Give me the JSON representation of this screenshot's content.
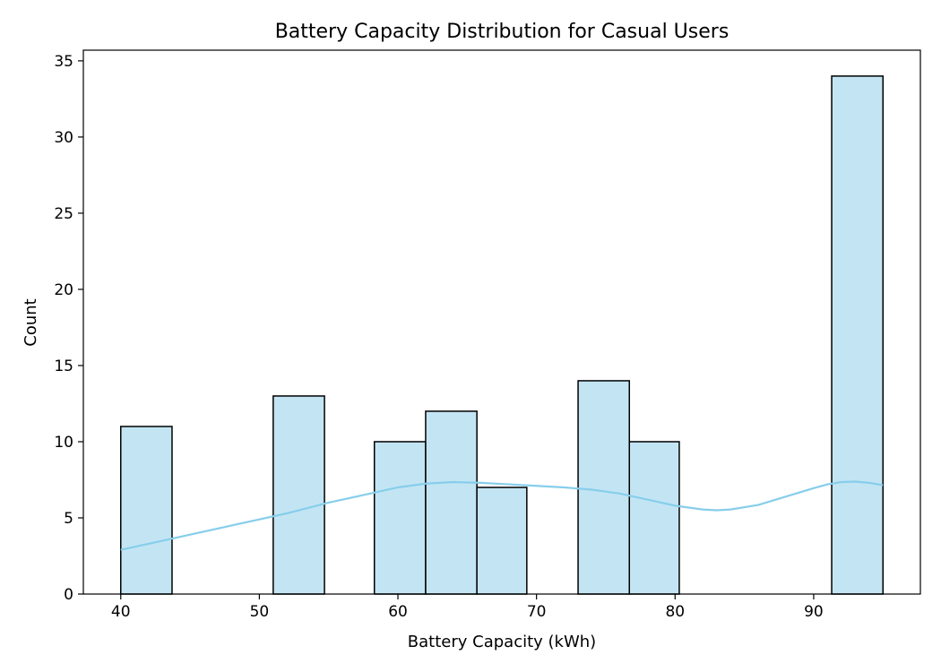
{
  "chart_data": {
    "type": "bar",
    "title": "Battery Capacity Distribution for Casual Users",
    "xlabel": "Battery Capacity (kWh)",
    "ylabel": "Count",
    "xlim": [
      37.3,
      97.7
    ],
    "ylim": [
      0,
      35.7
    ],
    "xticks": [
      40,
      50,
      60,
      70,
      80,
      90
    ],
    "yticks": [
      0,
      5,
      10,
      15,
      20,
      25,
      30,
      35
    ],
    "bins": [
      {
        "x0": 40.0,
        "x1": 43.7,
        "count": 11
      },
      {
        "x0": 43.7,
        "x1": 47.3,
        "count": 0
      },
      {
        "x0": 47.3,
        "x1": 51.0,
        "count": 0
      },
      {
        "x0": 51.0,
        "x1": 54.7,
        "count": 13
      },
      {
        "x0": 54.7,
        "x1": 58.3,
        "count": 0
      },
      {
        "x0": 58.3,
        "x1": 62.0,
        "count": 10
      },
      {
        "x0": 62.0,
        "x1": 65.7,
        "count": 12
      },
      {
        "x0": 65.7,
        "x1": 69.3,
        "count": 7
      },
      {
        "x0": 69.3,
        "x1": 73.0,
        "count": 0
      },
      {
        "x0": 73.0,
        "x1": 76.7,
        "count": 14
      },
      {
        "x0": 76.7,
        "x1": 80.3,
        "count": 10
      },
      {
        "x0": 80.3,
        "x1": 84.0,
        "count": 0
      },
      {
        "x0": 84.0,
        "x1": 87.7,
        "count": 0
      },
      {
        "x0": 87.7,
        "x1": 91.3,
        "count": 0
      },
      {
        "x0": 91.3,
        "x1": 95.0,
        "count": 34
      }
    ],
    "kde": {
      "x": [
        40,
        42,
        45,
        48,
        50,
        52,
        55,
        58,
        60,
        62,
        64,
        66,
        68,
        70,
        72,
        74,
        76,
        78,
        80,
        82,
        83,
        84,
        86,
        88,
        90,
        91,
        92,
        93,
        94,
        95
      ],
      "y": [
        2.9,
        3.3,
        3.9,
        4.5,
        4.9,
        5.3,
        6.0,
        6.6,
        7.0,
        7.25,
        7.35,
        7.3,
        7.2,
        7.1,
        7.0,
        6.85,
        6.6,
        6.2,
        5.8,
        5.55,
        5.5,
        5.55,
        5.85,
        6.4,
        6.95,
        7.2,
        7.35,
        7.38,
        7.3,
        7.15
      ]
    },
    "bar_color": "#c3e5f3",
    "bar_edge_color": "#000000",
    "kde_color": "#87ceeb",
    "grid": false
  }
}
